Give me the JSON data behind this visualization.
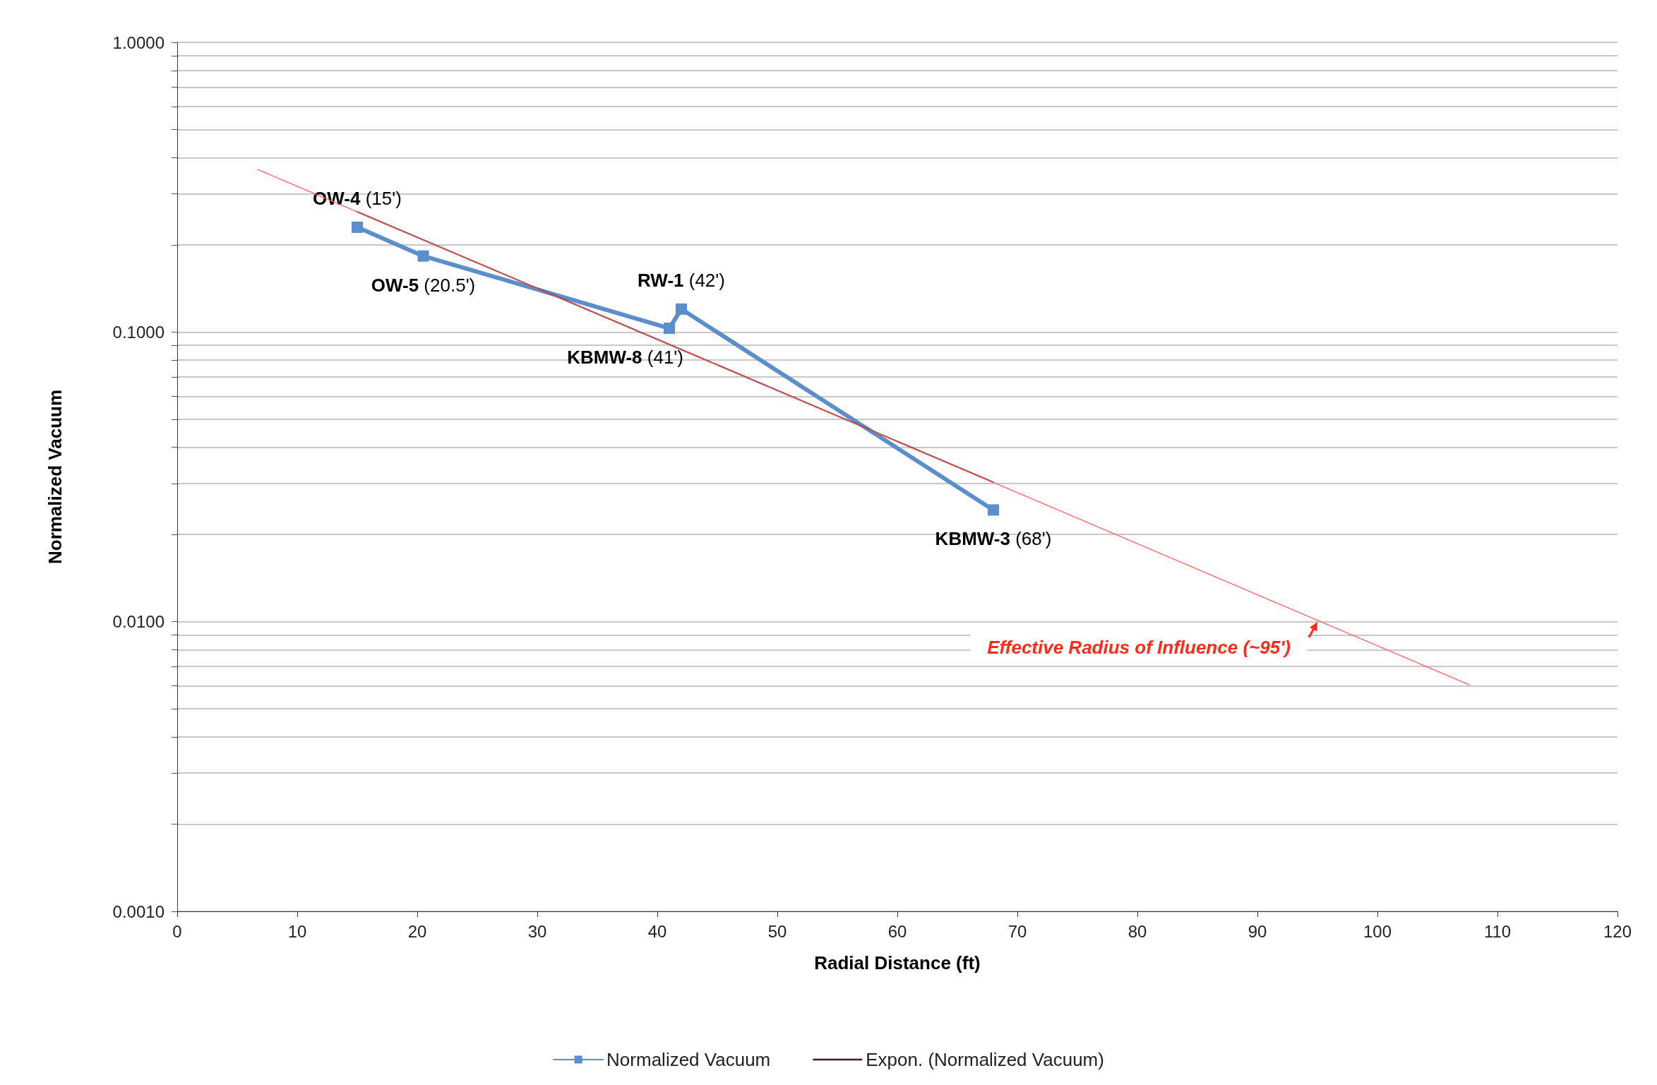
{
  "chart_data": {
    "type": "line",
    "xlabel": "Radial Distance (ft)",
    "ylabel": "Normalized Vacuum",
    "series": [
      {
        "name": "Normalized Vacuum",
        "color": "#5b8fcc",
        "x": [
          15,
          20.5,
          41,
          42,
          68
        ],
        "values": [
          0.23,
          0.183,
          0.103,
          0.12,
          0.0243
        ],
        "marker": "square",
        "line_style": "solid"
      },
      {
        "name": "Expon. (Normalized Vacuum)",
        "color": "#3a2020",
        "x": [
          15,
          68
        ],
        "values": [
          0.26,
          0.0303
        ],
        "marker": "none",
        "line_style": "solid"
      },
      {
        "color": "#ff6060",
        "x": [
          6.7,
          107.7
        ],
        "values": [
          0.364,
          0.00604
        ],
        "marker": "none",
        "line_style": "dotted"
      }
    ],
    "log": "y",
    "xlim": [
      0,
      120
    ],
    "xticks": [
      0,
      10,
      20,
      30,
      40,
      50,
      60,
      70,
      80,
      90,
      100,
      110,
      120
    ],
    "ylim": [
      0.001,
      1
    ],
    "yticks": [
      {
        "value": 0.001,
        "label": "0.0010"
      },
      {
        "value": 0.002,
        "label": null
      },
      {
        "value": 0.003,
        "label": null
      },
      {
        "value": 0.004,
        "label": null
      },
      {
        "value": 0.005,
        "label": null
      },
      {
        "value": 0.006,
        "label": null
      },
      {
        "value": 0.007,
        "label": null
      },
      {
        "value": 0.008,
        "label": null
      },
      {
        "value": 0.009,
        "label": null
      },
      {
        "value": 0.01,
        "label": "0.0100"
      },
      {
        "value": 0.02,
        "label": null
      },
      {
        "value": 0.03,
        "label": null
      },
      {
        "value": 0.04,
        "label": null
      },
      {
        "value": 0.05,
        "label": null
      },
      {
        "value": 0.06,
        "label": null
      },
      {
        "value": 0.07,
        "label": null
      },
      {
        "value": 0.08,
        "label": null
      },
      {
        "value": 0.09,
        "label": null
      },
      {
        "value": 0.1,
        "label": "0.1000"
      },
      {
        "value": 0.2,
        "label": null
      },
      {
        "value": 0.3,
        "label": null
      },
      {
        "value": 0.4,
        "label": null
      },
      {
        "value": 0.5,
        "label": null
      },
      {
        "value": 0.6,
        "label": null
      },
      {
        "value": 0.7,
        "label": null
      },
      {
        "value": 0.8,
        "label": null
      },
      {
        "value": 0.9,
        "label": null
      },
      {
        "value": 1,
        "label": "1.0000"
      }
    ],
    "grid": "y",
    "legend": "bottom",
    "annotations": [
      {
        "text": "OW-4 (15')",
        "x": 15,
        "y": 0.23
      },
      {
        "text": "OW-5 (20.5')",
        "x": 20.5,
        "y": 0.183
      },
      {
        "text": "KBMW-8 (41')",
        "x": 41,
        "y": 0.103
      },
      {
        "text": "RW-1 (42')",
        "x": 42,
        "y": 0.12
      },
      {
        "text": "KBMW-3 (68')",
        "x": 68,
        "y": 0.0243
      },
      {
        "text": "Effective Radius of Influence (~95')",
        "x": 95,
        "y": 0.01
      }
    ]
  }
}
